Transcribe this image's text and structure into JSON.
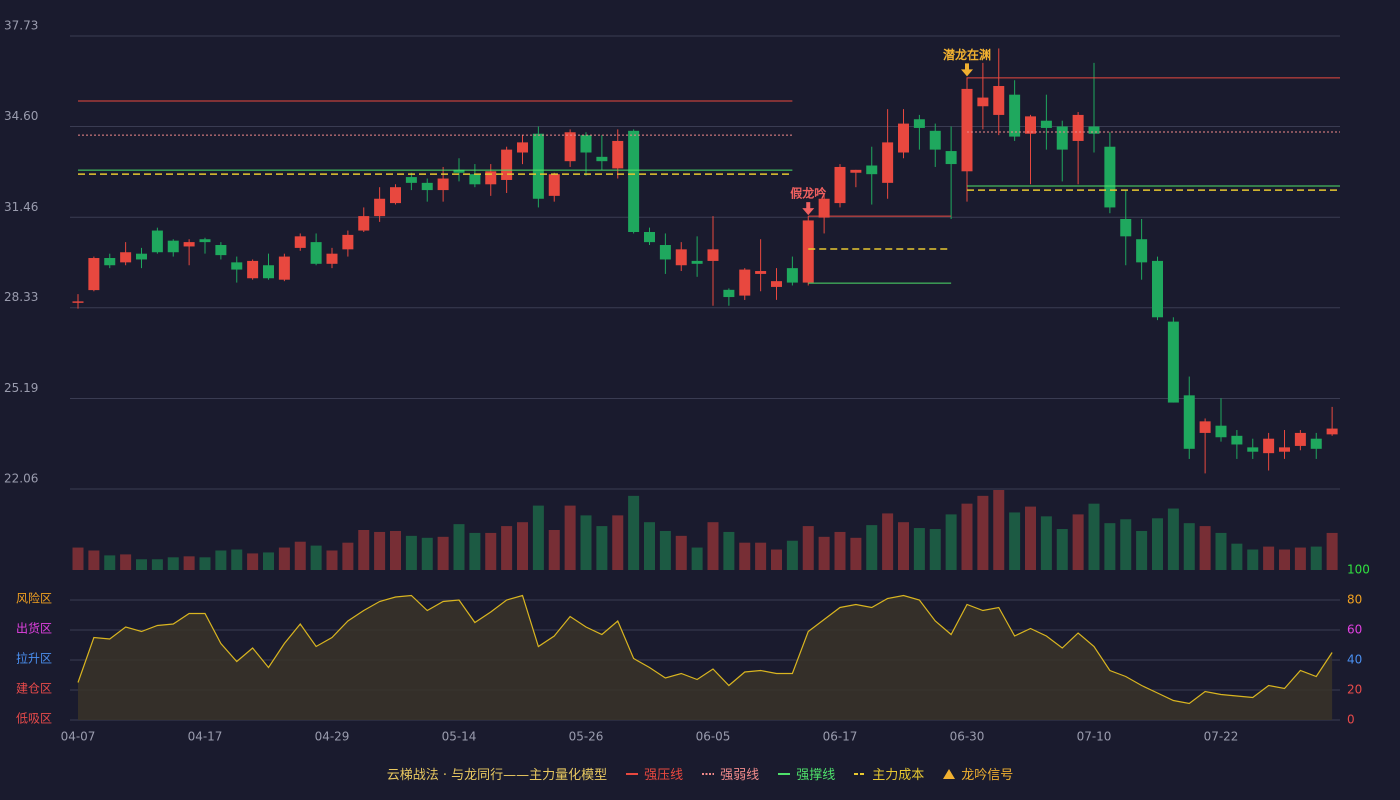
{
  "chart_data": [
    {
      "type": "candlestick",
      "categories": [
        "04-07",
        null,
        null,
        null,
        null,
        null,
        null,
        null,
        "04-17",
        null,
        null,
        null,
        null,
        null,
        null,
        null,
        "04-29",
        null,
        null,
        null,
        null,
        null,
        null,
        null,
        "05-14",
        null,
        null,
        null,
        null,
        null,
        null,
        null,
        "05-26",
        null,
        null,
        null,
        null,
        null,
        null,
        null,
        "06-05",
        null,
        null,
        null,
        null,
        null,
        null,
        null,
        "06-17",
        null,
        null,
        null,
        null,
        null,
        null,
        null,
        "06-30",
        null,
        null,
        null,
        null,
        null,
        null,
        null,
        "07-10",
        null,
        null,
        null,
        null,
        null,
        null,
        null,
        "07-22",
        null,
        null,
        null,
        null,
        null,
        null,
        null
      ],
      "open": [
        28.5,
        28.94,
        30.05,
        29.9,
        30.2,
        31.0,
        30.65,
        30.45,
        30.7,
        30.5,
        29.9,
        29.35,
        29.8,
        29.3,
        30.4,
        30.6,
        29.85,
        30.35,
        31.0,
        31.5,
        31.95,
        32.85,
        32.65,
        32.4,
        33.1,
        32.95,
        32.6,
        32.75,
        33.7,
        34.35,
        32.2,
        33.4,
        34.3,
        33.55,
        33.15,
        34.45,
        30.95,
        30.5,
        29.8,
        29.95,
        29.95,
        28.95,
        28.75,
        29.5,
        29.05,
        29.7,
        29.2,
        31.45,
        31.95,
        33.0,
        33.25,
        32.65,
        33.7,
        34.85,
        34.45,
        33.75,
        33.05,
        35.3,
        35.0,
        35.7,
        34.35,
        34.8,
        34.6,
        34.1,
        34.6,
        33.9,
        31.4,
        30.7,
        29.95,
        27.85,
        25.3,
        24.0,
        24.25,
        23.9,
        23.5,
        23.3,
        23.35,
        23.55,
        23.8,
        23.95
      ],
      "close": [
        28.55,
        30.05,
        29.8,
        30.25,
        30.0,
        30.25,
        30.25,
        30.6,
        30.6,
        30.15,
        29.65,
        29.95,
        29.35,
        30.1,
        30.8,
        29.85,
        30.2,
        30.85,
        31.5,
        32.1,
        32.5,
        32.65,
        32.4,
        32.8,
        33.0,
        32.6,
        33.05,
        33.8,
        34.05,
        32.1,
        32.95,
        34.4,
        33.7,
        33.4,
        34.1,
        30.95,
        30.6,
        30.0,
        30.35,
        29.85,
        30.35,
        28.7,
        29.65,
        29.6,
        29.25,
        29.2,
        31.35,
        32.1,
        33.2,
        33.1,
        32.95,
        34.05,
        34.7,
        34.55,
        33.8,
        33.3,
        35.9,
        35.6,
        36.0,
        34.25,
        34.95,
        34.55,
        33.8,
        35.0,
        34.35,
        31.8,
        30.8,
        29.9,
        28.0,
        25.05,
        23.45,
        24.4,
        23.85,
        23.6,
        23.35,
        23.8,
        23.5,
        24.0,
        23.45,
        24.15
      ],
      "high": [
        28.8,
        30.1,
        30.2,
        30.6,
        30.4,
        31.1,
        30.7,
        30.7,
        30.75,
        30.6,
        30.1,
        30.0,
        30.2,
        30.2,
        30.9,
        30.9,
        30.4,
        31.0,
        31.8,
        32.5,
        32.6,
        33.0,
        32.8,
        33.2,
        33.5,
        33.3,
        33.3,
        33.9,
        34.3,
        34.6,
        33.0,
        34.5,
        34.4,
        34.3,
        34.5,
        34.5,
        31.1,
        30.9,
        30.6,
        30.8,
        31.5,
        29.0,
        29.7,
        30.7,
        29.7,
        30.1,
        31.5,
        32.3,
        33.3,
        33.1,
        33.9,
        35.2,
        35.2,
        35.0,
        34.7,
        34.6,
        36.3,
        36.8,
        37.3,
        36.2,
        35.0,
        35.7,
        34.8,
        35.1,
        36.8,
        34.4,
        32.4,
        31.4,
        30.1,
        28.0,
        25.95,
        24.5,
        25.2,
        24.1,
        23.8,
        24.0,
        24.1,
        24.1,
        24.0,
        24.9
      ],
      "low": [
        28.3,
        28.9,
        29.7,
        29.8,
        29.7,
        30.2,
        30.1,
        29.8,
        30.2,
        30.0,
        29.2,
        29.3,
        29.3,
        29.25,
        30.3,
        29.8,
        29.7,
        30.1,
        30.95,
        31.3,
        31.9,
        32.4,
        32.0,
        32.0,
        32.7,
        32.5,
        32.2,
        32.3,
        33.3,
        31.8,
        32.0,
        33.2,
        32.9,
        33.1,
        32.8,
        30.9,
        30.5,
        29.5,
        29.6,
        29.4,
        28.4,
        28.4,
        28.6,
        28.9,
        28.6,
        29.1,
        29.1,
        30.9,
        31.8,
        32.5,
        31.9,
        32.1,
        33.5,
        33.8,
        33.2,
        31.4,
        32.0,
        34.5,
        34.3,
        34.1,
        32.6,
        33.8,
        32.7,
        32.6,
        33.7,
        31.6,
        29.8,
        29.3,
        27.9,
        25.05,
        23.1,
        22.6,
        23.7,
        23.1,
        23.1,
        22.7,
        23.1,
        23.4,
        23.1,
        23.9
      ],
      "volume": [
        23,
        20,
        15,
        16,
        11,
        11,
        13,
        14,
        13,
        20,
        21,
        17,
        18,
        23,
        29,
        25,
        20,
        28,
        41,
        39,
        40,
        35,
        33,
        34,
        47,
        38,
        38,
        45,
        49,
        66,
        41,
        66,
        56,
        45,
        56,
        76,
        49,
        40,
        35,
        23,
        49,
        39,
        28,
        28,
        21,
        30,
        45,
        34,
        39,
        33,
        46,
        58,
        49,
        43,
        42,
        57,
        68,
        76,
        82,
        59,
        65,
        55,
        42,
        57,
        68,
        48,
        52,
        40,
        53,
        63,
        48,
        45,
        38,
        27,
        21,
        24,
        21,
        23,
        24,
        38
      ],
      "up_color": "#e8483f",
      "down_color": "#1fa85e",
      "ylim": [
        22.06,
        37.73
      ],
      "yticks": [
        22.06,
        25.19,
        28.33,
        31.46,
        {
          "value": 34.6,
          "label": "34.60"
        },
        37.73
      ],
      "grid": true,
      "levels": [
        {
          "start": 0,
          "end": 45,
          "resist": 35.48,
          "mid": 34.3,
          "support": 33.09,
          "cost": 32.95
        },
        {
          "start": 46,
          "end": 55,
          "resist": 31.5,
          "support": 29.18,
          "cost": 30.36
        },
        {
          "start": 56,
          "end": 79,
          "resist": 36.28,
          "mid": 34.41,
          "support": 32.54,
          "cost": 32.4
        }
      ],
      "signals": [
        {
          "index": 46,
          "label": "假龙吟",
          "color": "#f06060"
        },
        {
          "index": 56,
          "label": "潜龙在渊",
          "color": "#f0b030"
        }
      ],
      "legend_title": "云梯战法 · 与龙同行——主力量化模型",
      "legend": [
        {
          "label": "强压线",
          "key": "resist",
          "color": "#e8483f",
          "style": "solid"
        },
        {
          "label": "强弱线",
          "key": "mid",
          "color": "#f08a8a",
          "style": "dotted"
        },
        {
          "label": "强撑线",
          "key": "support",
          "color": "#4ee06a",
          "style": "solid"
        },
        {
          "label": "主力成本",
          "key": "cost",
          "color": "#e8c830",
          "style": "dashed"
        },
        {
          "label": "龙吟信号",
          "key": "signal",
          "color": "#f0b030",
          "style": "triangle"
        }
      ]
    },
    {
      "type": "line",
      "values": [
        25,
        55,
        54,
        62,
        59,
        63,
        64,
        71,
        71,
        51,
        39,
        48,
        35,
        51,
        64,
        49,
        55,
        66,
        73,
        79,
        82,
        83,
        73,
        79,
        80,
        65,
        72,
        80,
        83,
        49,
        56,
        69,
        62,
        57,
        66,
        41,
        35,
        28,
        31,
        27,
        34,
        23,
        32,
        33,
        31,
        31,
        59,
        67,
        75,
        77,
        75,
        81,
        83,
        80,
        66,
        57,
        77,
        73,
        75,
        56,
        61,
        56,
        48,
        58,
        49,
        33,
        29,
        23,
        18,
        13,
        11,
        19,
        17,
        16,
        15,
        23,
        21,
        33,
        29,
        45
      ],
      "color": "#d9b520",
      "ylim": [
        0,
        100
      ],
      "yticks": [
        0,
        20,
        40,
        60,
        80,
        100
      ],
      "tick_colors": [
        "#e84a4a",
        "#e84a4a",
        "#4a8ff0",
        "#e040e0",
        "#f0a020",
        "#30e040"
      ],
      "zones": [
        {
          "value": 80,
          "label": "风险区",
          "color": "#f0a020"
        },
        {
          "value": 60,
          "label": "出货区",
          "color": "#e040e0"
        },
        {
          "value": 40,
          "label": "拉升区",
          "color": "#4a8ff0"
        },
        {
          "value": 20,
          "label": "建仓区",
          "color": "#e84a4a"
        },
        {
          "value": 0,
          "label": "低吸区",
          "color": "#e84a4a"
        }
      ]
    }
  ]
}
